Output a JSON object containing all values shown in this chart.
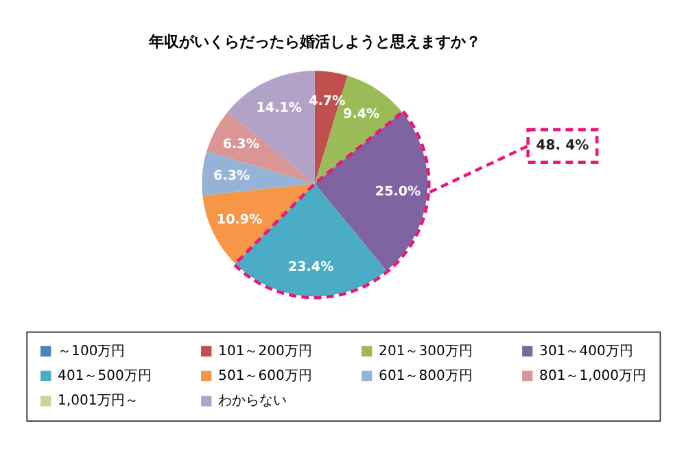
{
  "chart_data": {
    "type": "pie",
    "title": "年収がいくらだったら婚活しようと思えますか？",
    "categories": [
      "～100万円",
      "101～200万円",
      "201～300万円",
      "301～400万円",
      "401～500万円",
      "501～600万円",
      "601～800万円",
      "801～1,000万円",
      "1,001万円～",
      "わからない"
    ],
    "values": [
      0,
      4.7,
      9.4,
      25.0,
      23.4,
      10.9,
      6.3,
      6.3,
      0,
      14.1
    ],
    "value_labels": [
      null,
      "4.7%",
      "9.4%",
      "25.0%",
      "23.4%",
      "10.9%",
      "6.3%",
      "6.3%",
      null,
      "14.1%"
    ],
    "colors": [
      "#4f81bd",
      "#c0504d",
      "#9bbb59",
      "#8064a2",
      "#4bacc6",
      "#f79646",
      "#95b3d7",
      "#d99694",
      "#c3d69b",
      "#b3a2c7"
    ],
    "legend": "bottom",
    "annotations": [
      "48. 4%"
    ]
  }
}
